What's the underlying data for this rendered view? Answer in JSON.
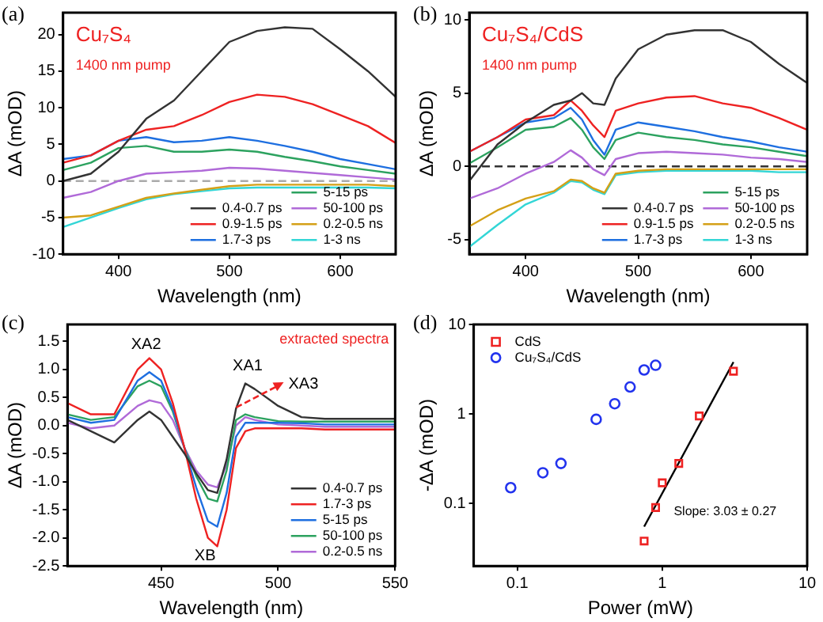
{
  "chart_data": [
    {
      "type": "line",
      "xlabel": "Wavelength (nm)",
      "ylabel": "ΔA (mOD)",
      "annotations": [
        "(a)",
        "Cu₇S₄",
        "1400 nm pump"
      ],
      "x": [
        350,
        375,
        400,
        425,
        450,
        475,
        500,
        525,
        550,
        575,
        600,
        625,
        650
      ],
      "xlim": [
        350,
        650
      ],
      "xticks": [
        400,
        500,
        600
      ],
      "ylim": [
        -10,
        23
      ],
      "yticks": [
        -10,
        -5,
        0,
        5,
        10,
        15,
        20
      ],
      "legend": "bottom right",
      "marker": "none",
      "line_style": "solid",
      "ref_lines": [
        {
          "axis": "y",
          "value": 0,
          "color": "#aaaaaa",
          "line_style": "dashed"
        }
      ],
      "series": [
        {
          "name": "0.4-0.7 ps",
          "color": "#333333",
          "values": [
            0,
            1,
            4,
            8.5,
            11,
            15,
            19,
            20.5,
            21,
            20.8,
            18,
            15,
            11.5
          ]
        },
        {
          "name": "0.9-1.5 ps",
          "color": "#ee2222",
          "values": [
            2.5,
            3.5,
            5.5,
            7,
            7.5,
            9,
            10.8,
            11.8,
            11.5,
            10.5,
            9,
            7.5,
            5.2
          ]
        },
        {
          "name": "1.7-3 ps",
          "color": "#1e6fe0",
          "values": [
            3,
            3.5,
            5.5,
            6,
            5.3,
            5.5,
            6,
            5.5,
            4.8,
            4,
            3,
            2.3,
            1.6
          ]
        },
        {
          "name": "5-15 ps",
          "color": "#2ca25f",
          "values": [
            1.5,
            2.5,
            4.5,
            4.8,
            4,
            4,
            4.3,
            4,
            3.3,
            2.7,
            2,
            1.5,
            1
          ]
        },
        {
          "name": "50-100 ps",
          "color": "#b06ad8",
          "values": [
            -2.3,
            -1.5,
            0,
            1,
            1.2,
            1.4,
            1.8,
            1.7,
            1.4,
            1.1,
            0.8,
            0.5,
            0.2
          ]
        },
        {
          "name": "0.2-0.5 ns",
          "color": "#d4a017",
          "values": [
            -5,
            -4.7,
            -3.5,
            -2.3,
            -1.7,
            -1.2,
            -0.7,
            -0.5,
            -0.5,
            -0.5,
            -0.5,
            -0.5,
            -0.7
          ]
        },
        {
          "name": "1-3 ns",
          "color": "#33d6d6",
          "values": [
            -6.3,
            -5,
            -3.7,
            -2.5,
            -1.8,
            -1.4,
            -1,
            -0.9,
            -0.9,
            -0.9,
            -0.9,
            -0.9,
            -1
          ]
        }
      ]
    },
    {
      "type": "line",
      "xlabel": "Wavelength (nm)",
      "ylabel": "ΔA (mOD)",
      "annotations": [
        "(b)",
        "Cu₇S₄/CdS",
        "1400 nm pump"
      ],
      "x": [
        350,
        375,
        400,
        425,
        440,
        450,
        460,
        470,
        480,
        500,
        525,
        550,
        575,
        600,
        625,
        650
      ],
      "xlim": [
        350,
        650
      ],
      "xticks": [
        400,
        500,
        600
      ],
      "ylim": [
        -6,
        10.5
      ],
      "yticks": [
        -5,
        0,
        5,
        10
      ],
      "legend": "bottom right",
      "marker": "none",
      "line_style": "solid",
      "ref_lines": [
        {
          "axis": "y",
          "value": 0,
          "color": "#333333",
          "line_style": "dashed"
        }
      ],
      "series": [
        {
          "name": "0.4-0.7 ps",
          "color": "#333333",
          "values": [
            -1,
            1.5,
            3,
            4.2,
            4.5,
            5,
            4.3,
            4.2,
            6,
            8,
            9,
            9.3,
            9.3,
            8.5,
            7,
            5.7
          ]
        },
        {
          "name": "0.9-1.5 ps",
          "color": "#ee2222",
          "values": [
            1,
            2,
            3.2,
            3.5,
            4.5,
            3.8,
            2.8,
            2,
            3.8,
            4.3,
            4.7,
            4.8,
            4.3,
            4,
            3.3,
            2.5
          ]
        },
        {
          "name": "1.7-3 ps",
          "color": "#1e6fe0",
          "values": [
            1,
            2,
            3,
            3.3,
            4,
            3.2,
            1.8,
            0.8,
            2.5,
            3,
            2.7,
            2.4,
            2,
            1.7,
            1.3,
            1
          ]
        },
        {
          "name": "5-15 ps",
          "color": "#2ca25f",
          "values": [
            0.2,
            1.3,
            2.5,
            2.7,
            3.3,
            2.5,
            1.3,
            0.5,
            1.8,
            2.3,
            2,
            1.8,
            1.5,
            1.3,
            1,
            0.7
          ]
        },
        {
          "name": "50-100 ps",
          "color": "#b06ad8",
          "values": [
            -2.2,
            -1.5,
            -0.5,
            0.3,
            1.1,
            0.6,
            -0.2,
            -0.6,
            0.5,
            0.9,
            1,
            0.9,
            0.8,
            0.6,
            0.5,
            0.3
          ]
        },
        {
          "name": "0.2-0.5 ns",
          "color": "#d4a017",
          "values": [
            -4.1,
            -3,
            -2.2,
            -1.7,
            -0.9,
            -1,
            -1.5,
            -1.8,
            -0.5,
            -0.3,
            -0.2,
            -0.2,
            -0.2,
            -0.2,
            -0.2,
            -0.2
          ]
        },
        {
          "name": "1-3 ns",
          "color": "#33d6d6",
          "values": [
            -5.5,
            -4,
            -2.6,
            -1.8,
            -1,
            -1.1,
            -1.6,
            -1.9,
            -0.6,
            -0.4,
            -0.3,
            -0.3,
            -0.3,
            -0.3,
            -0.4,
            -0.4
          ]
        }
      ]
    },
    {
      "type": "line",
      "xlabel": "Wavelength (nm)",
      "ylabel": "ΔA (mOD)",
      "annotations": [
        "(c)",
        "extracted spectra",
        "XA2",
        "XA1",
        "XA3",
        "XB"
      ],
      "x": [
        410,
        420,
        430,
        440,
        445,
        450,
        455,
        460,
        465,
        470,
        474,
        478,
        482,
        486,
        490,
        500,
        510,
        520,
        535,
        550
      ],
      "xlim": [
        410,
        550
      ],
      "xticks": [
        450,
        500,
        550
      ],
      "ylim": [
        -2.5,
        1.8
      ],
      "yticks": [
        -2.5,
        {
          "value": -2,
          "label": "-2.0"
        },
        -1.5,
        {
          "value": -1,
          "label": "-1.0"
        },
        -0.5,
        {
          "value": 0,
          "label": "0.0"
        },
        0.5,
        {
          "value": 1,
          "label": "1.0"
        },
        1.5
      ],
      "legend": "bottom right",
      "marker": "none",
      "line_style": "solid",
      "series": [
        {
          "name": "0.4-0.7 ps",
          "color": "#333333",
          "values": [
            0.1,
            -0.1,
            -0.3,
            0.1,
            0.25,
            0.1,
            -0.2,
            -0.5,
            -0.85,
            -1.15,
            -1.2,
            -0.6,
            0.3,
            0.75,
            0.65,
            0.35,
            0.15,
            0.12,
            0.12,
            0.12
          ]
        },
        {
          "name": "1.7-3 ps",
          "color": "#ee2222",
          "values": [
            0.4,
            0.2,
            0.2,
            1.0,
            1.2,
            1.0,
            0.4,
            -0.4,
            -1.3,
            -2.0,
            -2.15,
            -1.5,
            -0.4,
            -0.1,
            -0.05,
            -0.05,
            -0.05,
            -0.07,
            -0.07,
            -0.07
          ]
        },
        {
          "name": "5-15 ps",
          "color": "#1e6fe0",
          "values": [
            0.15,
            0.05,
            0.1,
            0.8,
            0.95,
            0.8,
            0.3,
            -0.4,
            -1.1,
            -1.7,
            -1.8,
            -1.2,
            -0.2,
            0.05,
            0.05,
            0.05,
            0.04,
            0.02,
            0.02,
            0.02
          ]
        },
        {
          "name": "50-100 ps",
          "color": "#2ca25f",
          "values": [
            0.2,
            0.1,
            0.15,
            0.7,
            0.8,
            0.7,
            0.25,
            -0.4,
            -0.9,
            -1.3,
            -1.35,
            -0.8,
            0.1,
            0.2,
            0.15,
            0.08,
            0.07,
            0.07,
            0.07,
            0.07
          ]
        },
        {
          "name": "0.2-0.5 ns",
          "color": "#b06ad8",
          "values": [
            0.05,
            -0.05,
            0,
            0.35,
            0.45,
            0.4,
            0.1,
            -0.4,
            -0.8,
            -1.05,
            -1.1,
            -0.7,
            0,
            0.15,
            0.1,
            0.02,
            0.0,
            -0.02,
            -0.02,
            -0.02
          ]
        }
      ]
    },
    {
      "type": "scatter",
      "xlabel": "Power (mW)",
      "ylabel": "-ΔA (mOD)",
      "annotations": [
        "(d)",
        "Slope: 3.03 ± 0.27"
      ],
      "log": "xy",
      "xlim": [
        0.05,
        10
      ],
      "xticks": [
        0.1,
        1,
        10
      ],
      "ylim": [
        0.02,
        10
      ],
      "yticks": [
        0.1,
        1,
        10
      ],
      "legend": "top left",
      "series": [
        {
          "name": "CdS",
          "color": "#ee2222",
          "marker": "square",
          "x": [
            0.75,
            0.9,
            1.0,
            1.3,
            1.8,
            3.1
          ],
          "values": [
            0.038,
            0.09,
            0.17,
            0.28,
            0.95,
            3.0
          ]
        },
        {
          "name": "Cu₇S₄/CdS",
          "color": "#2233ee",
          "marker": "circle",
          "x": [
            0.09,
            0.15,
            0.2,
            0.35,
            0.47,
            0.6,
            0.75,
            0.9
          ],
          "values": [
            0.15,
            0.22,
            0.28,
            0.87,
            1.3,
            2.0,
            3.1,
            3.5
          ]
        },
        {
          "type": "line",
          "color": "#000000",
          "marker": "none",
          "x": [
            0.75,
            3.1
          ],
          "values": [
            0.055,
            3.8
          ]
        }
      ]
    }
  ]
}
